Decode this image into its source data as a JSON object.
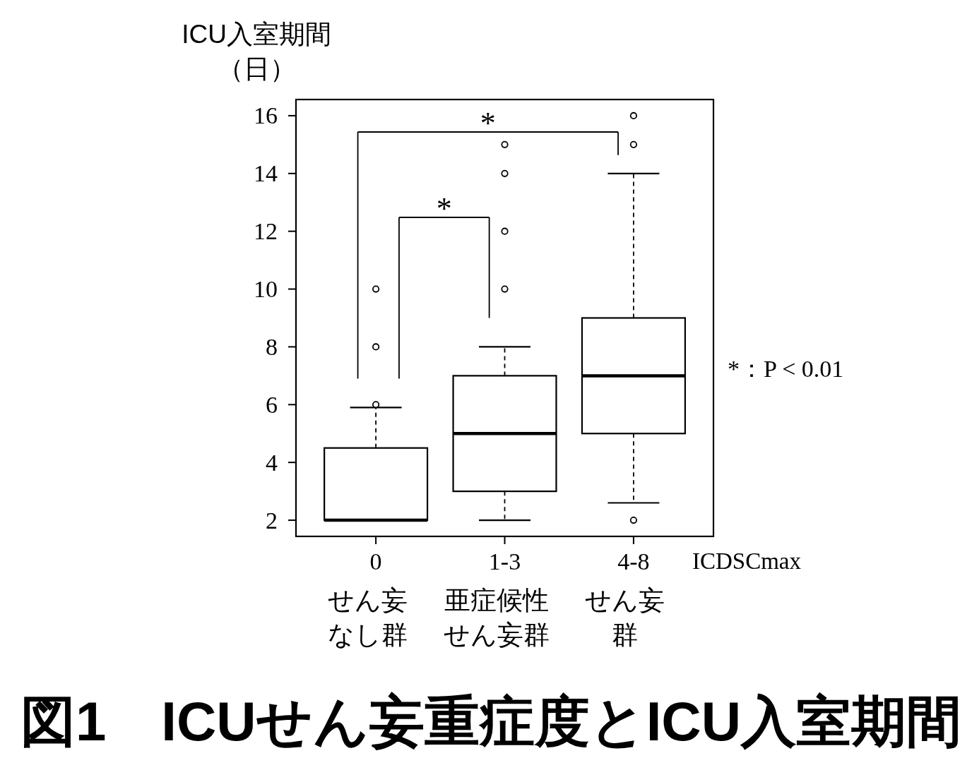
{
  "chart_data": {
    "type": "box",
    "title": "図1　ICUせん妄重症度とICU入室期間",
    "ylabel": "ICU入室期間（日）",
    "xlabel": "ICDSCmax",
    "categories": [
      "0\nせん妄なし群",
      "1-3\n亜症候性せん妄群",
      "4-8\nせん妄群"
    ],
    "boxes": [
      {
        "low": 2,
        "q1": 2,
        "median": 2,
        "q3": 4.5,
        "high": 5.9,
        "outliers": [
          6,
          8,
          10
        ]
      },
      {
        "low": 2,
        "q1": 3,
        "median": 5,
        "q3": 7,
        "high": 8,
        "outliers": [
          10,
          12,
          14,
          15
        ]
      },
      {
        "low": 2.6,
        "q1": 5,
        "median": 7,
        "q3": 9,
        "high": 14,
        "outliers": [
          2,
          15,
          16
        ]
      }
    ],
    "color": "#000000",
    "ylim": [
      1.44,
      16.56
    ],
    "yticks": [
      2,
      4,
      6,
      8,
      10,
      12,
      14,
      16
    ],
    "annotations": [
      "*",
      "*",
      "*：P < 0.01"
    ]
  }
}
